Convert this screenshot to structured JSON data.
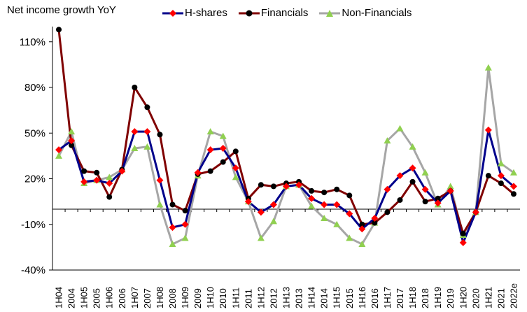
{
  "chart_data": {
    "type": "line",
    "title": "",
    "ylabel": "Net income growth YoY",
    "xlabel": "",
    "ylim": [
      -40,
      120
    ],
    "yticks": [
      110,
      80,
      50,
      20,
      -10,
      -40
    ],
    "ytick_labels": [
      "110%",
      "80%",
      "50%",
      "20%",
      "-10%",
      "-40%"
    ],
    "zero_line": 0,
    "categories": [
      "1H04",
      "2004",
      "1H05",
      "2005",
      "1H06",
      "2006",
      "1H07",
      "2007",
      "1H08",
      "2008",
      "1H09",
      "2009",
      "1H10",
      "2010",
      "1H11",
      "2011",
      "1H12",
      "2012",
      "1H13",
      "2013",
      "1H14",
      "2014",
      "1H15",
      "2015",
      "1H16",
      "2016",
      "1H17",
      "2017",
      "1H18",
      "2018",
      "1H19",
      "2019",
      "1H20",
      "2020",
      "1H21",
      "2021",
      "2022e"
    ],
    "series": [
      {
        "name": "H-shares",
        "color": "#00008b",
        "marker": "diamond",
        "marker_color": "#ff0000",
        "values": [
          39,
          45,
          18,
          19,
          17,
          25,
          51,
          51,
          19,
          -12,
          -10,
          24,
          39,
          40,
          27,
          5,
          -2,
          3,
          15,
          16,
          7,
          3,
          3,
          -3,
          -13,
          -6,
          13,
          22,
          27,
          13,
          4,
          12,
          -22,
          -2,
          52,
          22,
          15
        ]
      },
      {
        "name": "Financials",
        "color": "#800000",
        "marker": "circle",
        "marker_color": "#000000",
        "values": [
          118,
          42,
          25,
          24,
          8,
          26,
          80,
          67,
          49,
          3,
          -1,
          23,
          25,
          31,
          38,
          7,
          16,
          15,
          17,
          18,
          12,
          11,
          13,
          9,
          -10,
          -9,
          -2,
          6,
          18,
          5,
          7,
          12,
          -16,
          -2,
          22,
          17,
          10
        ]
      },
      {
        "name": "Non-Financials",
        "color": "#a6a6a6",
        "marker": "triangle",
        "marker_color": "#90d050",
        "values": [
          35,
          51,
          17,
          19,
          21,
          26,
          40,
          41,
          3,
          -23,
          -19,
          22,
          51,
          48,
          21,
          5,
          -19,
          -8,
          15,
          16,
          2,
          -6,
          -10,
          -19,
          -23,
          -9,
          45,
          53,
          41,
          24,
          3,
          15,
          -17,
          -2,
          93,
          30,
          24
        ]
      }
    ]
  }
}
